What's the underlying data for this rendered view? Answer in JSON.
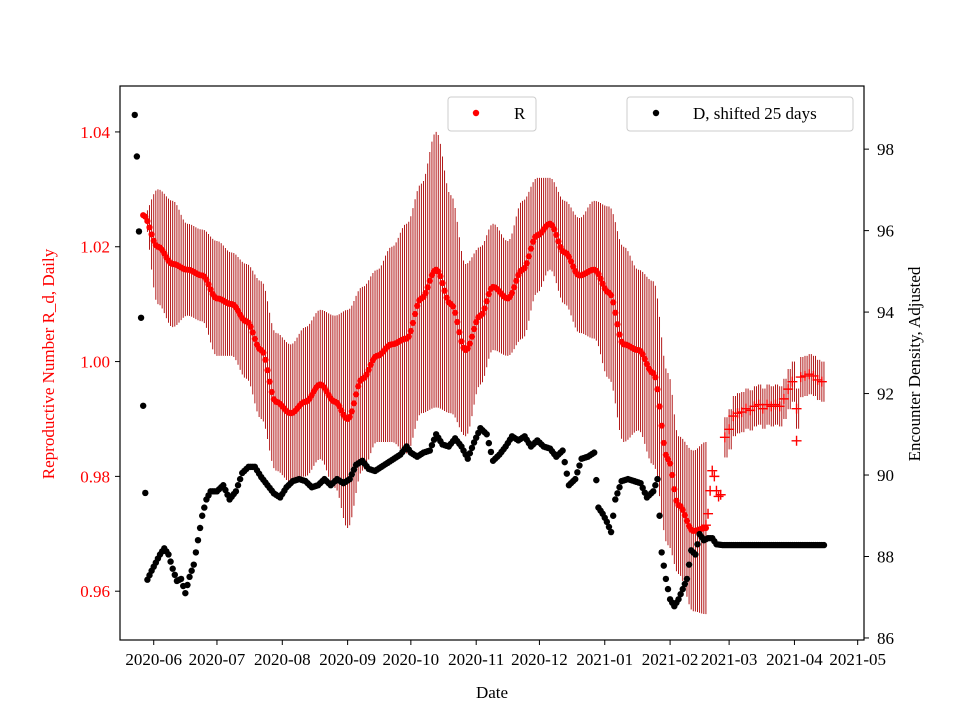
{
  "chart_data": {
    "type": "scatter",
    "xlabel": "Date",
    "left_axis": {
      "label": "Reproductive Number R_d, Daily",
      "color": "#ff0000",
      "ylim": [
        0.9515,
        1.048
      ],
      "ticks": [
        0.96,
        0.98,
        1.0,
        1.02,
        1.04
      ],
      "tick_labels": [
        "0.96",
        "0.98",
        "1.00",
        "1.02",
        "1.04"
      ]
    },
    "right_axis": {
      "label": "Encounter Density, Adjusted",
      "color": "#000000",
      "ylim": [
        85.95,
        99.55
      ],
      "ticks": [
        86,
        88,
        90,
        92,
        94,
        96,
        98
      ],
      "tick_labels": [
        "86",
        "88",
        "90",
        "92",
        "94",
        "96",
        "98"
      ]
    },
    "x_axis": {
      "start": "2020-05-16",
      "end": "2021-05-04",
      "ticks": [
        "2020-06-01",
        "2020-07-01",
        "2020-08-01",
        "2020-09-01",
        "2020-10-01",
        "2020-11-01",
        "2020-12-01",
        "2021-01-01",
        "2021-02-01",
        "2021-03-01",
        "2021-04-01",
        "2021-05-01"
      ],
      "tick_labels": [
        "2020-06",
        "2020-07",
        "2020-08",
        "2020-09",
        "2020-10",
        "2020-11",
        "2020-12",
        "2021-01",
        "2021-02",
        "2021-03",
        "2021-04",
        "2021-05"
      ]
    },
    "legends": [
      {
        "label": "R",
        "color": "#ff0000",
        "position": "upper-center"
      },
      {
        "label": "D, shifted 25 days",
        "color": "#000000",
        "position": "upper-right"
      }
    ],
    "series": [
      {
        "name": "R",
        "color": "#ff0000",
        "axis": "left",
        "marker": "dot",
        "date_start": "2020-05-27",
        "date_end": "2021-02-18",
        "error_color": "#aa0000",
        "knots": [
          [
            "2020-05-27",
            1.0255,
            0.0
          ],
          [
            "2020-06-03",
            1.02,
            0.01
          ],
          [
            "2020-06-10",
            1.017,
            0.011
          ],
          [
            "2020-06-17",
            1.016,
            0.008
          ],
          [
            "2020-06-24",
            1.015,
            0.008
          ],
          [
            "2020-07-01",
            1.011,
            0.01
          ],
          [
            "2020-07-08",
            1.01,
            0.009
          ],
          [
            "2020-07-15",
            1.007,
            0.01
          ],
          [
            "2020-07-22",
            1.002,
            0.012
          ],
          [
            "2020-07-29",
            0.993,
            0.012
          ],
          [
            "2020-08-05",
            0.991,
            0.012
          ],
          [
            "2020-08-12",
            0.993,
            0.013
          ],
          [
            "2020-08-19",
            0.996,
            0.013
          ],
          [
            "2020-08-26",
            0.993,
            0.015
          ],
          [
            "2020-09-01",
            0.99,
            0.019
          ],
          [
            "2020-09-08",
            0.997,
            0.016
          ],
          [
            "2020-09-15",
            1.001,
            0.015
          ],
          [
            "2020-09-22",
            1.003,
            0.017
          ],
          [
            "2020-09-29",
            1.004,
            0.02
          ],
          [
            "2020-10-06",
            1.011,
            0.02
          ],
          [
            "2020-10-13",
            1.016,
            0.024
          ],
          [
            "2020-10-20",
            1.01,
            0.019
          ],
          [
            "2020-10-27",
            1.002,
            0.015
          ],
          [
            "2020-11-03",
            1.008,
            0.012
          ],
          [
            "2020-11-09",
            1.013,
            0.011
          ],
          [
            "2020-11-16",
            1.011,
            0.01
          ],
          [
            "2020-11-23",
            1.016,
            0.012
          ],
          [
            "2020-11-30",
            1.022,
            0.01
          ],
          [
            "2020-12-06",
            1.024,
            0.008
          ],
          [
            "2020-12-13",
            1.019,
            0.009
          ],
          [
            "2020-12-20",
            1.015,
            0.01
          ],
          [
            "2020-12-27",
            1.016,
            0.012
          ],
          [
            "2021-01-03",
            1.012,
            0.015
          ],
          [
            "2021-01-10",
            1.003,
            0.017
          ],
          [
            "2021-01-17",
            1.002,
            0.014
          ],
          [
            "2021-01-24",
            0.998,
            0.016
          ],
          [
            "2021-01-31",
            0.983,
            0.015
          ],
          [
            "2021-02-05",
            0.975,
            0.012
          ],
          [
            "2021-02-12",
            0.9705,
            0.014
          ],
          [
            "2021-02-18",
            0.971,
            0.015
          ]
        ]
      },
      {
        "name": "R (plus markers)",
        "color": "#ff0000",
        "axis": "left",
        "marker": "plus",
        "points": [
          [
            "2021-02-18",
            0.9715
          ],
          [
            "2021-02-19",
            0.9735
          ],
          [
            "2021-02-20",
            0.9775
          ],
          [
            "2021-02-21",
            0.981
          ],
          [
            "2021-02-22",
            0.98
          ],
          [
            "2021-02-23",
            0.9775
          ],
          [
            "2021-02-24",
            0.9765
          ],
          [
            "2021-02-25",
            0.9768
          ],
          [
            "2021-02-27",
            0.9868
          ],
          [
            "2021-03-01",
            0.9882
          ],
          [
            "2021-03-03",
            0.9905
          ],
          [
            "2021-03-05",
            0.991
          ],
          [
            "2021-03-07",
            0.9912
          ],
          [
            "2021-03-09",
            0.9918
          ],
          [
            "2021-03-11",
            0.9915
          ],
          [
            "2021-03-13",
            0.9922
          ],
          [
            "2021-03-15",
            0.9925
          ],
          [
            "2021-03-17",
            0.9918
          ],
          [
            "2021-03-19",
            0.9925
          ],
          [
            "2021-03-21",
            0.9922
          ],
          [
            "2021-03-23",
            0.9925
          ],
          [
            "2021-03-25",
            0.9922
          ],
          [
            "2021-03-27",
            0.9935
          ],
          [
            "2021-03-29",
            0.9952
          ],
          [
            "2021-03-31",
            0.9965
          ],
          [
            "2021-04-02",
            0.9918
          ],
          [
            "2021-04-02",
            0.9862
          ],
          [
            "2021-04-04",
            0.9973
          ],
          [
            "2021-04-06",
            0.9975
          ],
          [
            "2021-04-08",
            0.9978
          ],
          [
            "2021-04-10",
            0.9975
          ],
          [
            "2021-04-12",
            0.9968
          ],
          [
            "2021-04-14",
            0.9965
          ]
        ],
        "error_band": {
          "date_start": "2021-02-27",
          "date_end": "2021-04-15",
          "half_width": 0.0035
        }
      },
      {
        "name": "D, shifted 25 days",
        "color": "#000000",
        "axis": "right",
        "marker": "dot",
        "points": [
          [
            "2020-05-23",
            98.84
          ],
          [
            "2020-05-24",
            97.82
          ],
          [
            "2020-05-25",
            95.98
          ],
          [
            "2020-05-26",
            93.86
          ],
          [
            "2020-05-27",
            91.7
          ],
          [
            "2020-05-28",
            89.56
          ],
          [
            "2020-05-29",
            87.43
          ],
          [
            "2020-05-31",
            87.65
          ],
          [
            "2020-06-02",
            87.85
          ],
          [
            "2020-06-04",
            88.05
          ],
          [
            "2020-06-06",
            88.2
          ],
          [
            "2020-06-08",
            88.05
          ],
          [
            "2020-06-10",
            87.7
          ],
          [
            "2020-06-12",
            87.4
          ],
          [
            "2020-06-14",
            87.45
          ],
          [
            "2020-06-16",
            87.1
          ],
          [
            "2020-06-18",
            87.5
          ],
          [
            "2020-06-20",
            87.8
          ],
          [
            "2020-06-22",
            88.4
          ],
          [
            "2020-06-24",
            89.0
          ],
          [
            "2020-06-26",
            89.4
          ],
          [
            "2020-06-28",
            89.6
          ],
          [
            "2020-07-01",
            89.6
          ],
          [
            "2020-07-04",
            89.75
          ],
          [
            "2020-07-07",
            89.4
          ],
          [
            "2020-07-10",
            89.6
          ],
          [
            "2020-07-13",
            90.05
          ],
          [
            "2020-07-16",
            90.2
          ],
          [
            "2020-07-19",
            90.2
          ],
          [
            "2020-07-22",
            89.95
          ],
          [
            "2020-07-25",
            89.75
          ],
          [
            "2020-07-28",
            89.55
          ],
          [
            "2020-07-31",
            89.45
          ],
          [
            "2020-08-03",
            89.7
          ],
          [
            "2020-08-06",
            89.85
          ],
          [
            "2020-08-09",
            89.9
          ],
          [
            "2020-08-12",
            89.85
          ],
          [
            "2020-08-15",
            89.7
          ],
          [
            "2020-08-18",
            89.75
          ],
          [
            "2020-08-21",
            89.9
          ],
          [
            "2020-08-24",
            89.75
          ],
          [
            "2020-08-27",
            89.9
          ],
          [
            "2020-08-30",
            89.8
          ],
          [
            "2020-09-02",
            89.9
          ],
          [
            "2020-09-05",
            90.25
          ],
          [
            "2020-09-08",
            90.35
          ],
          [
            "2020-09-11",
            90.15
          ],
          [
            "2020-09-14",
            90.1
          ],
          [
            "2020-09-17",
            90.2
          ],
          [
            "2020-09-20",
            90.3
          ],
          [
            "2020-09-23",
            90.4
          ],
          [
            "2020-09-26",
            90.5
          ],
          [
            "2020-09-29",
            90.7
          ],
          [
            "2020-10-01",
            90.55
          ],
          [
            "2020-10-04",
            90.45
          ],
          [
            "2020-10-07",
            90.55
          ],
          [
            "2020-10-10",
            90.6
          ],
          [
            "2020-10-13",
            91.0
          ],
          [
            "2020-10-16",
            90.75
          ],
          [
            "2020-10-19",
            90.7
          ],
          [
            "2020-10-22",
            90.9
          ],
          [
            "2020-10-25",
            90.7
          ],
          [
            "2020-10-28",
            90.4
          ],
          [
            "2020-10-31",
            90.8
          ],
          [
            "2020-11-03",
            91.15
          ],
          [
            "2020-11-06",
            91.0
          ],
          [
            "2020-11-09",
            90.35
          ],
          [
            "2020-11-12",
            90.5
          ],
          [
            "2020-11-15",
            90.7
          ],
          [
            "2020-11-18",
            90.95
          ],
          [
            "2020-11-21",
            90.85
          ],
          [
            "2020-11-24",
            90.95
          ],
          [
            "2020-11-27",
            90.7
          ],
          [
            "2020-11-30",
            90.85
          ],
          [
            "2020-12-03",
            90.7
          ],
          [
            "2020-12-06",
            90.65
          ],
          [
            "2020-12-09",
            90.45
          ],
          [
            "2020-12-12",
            90.6
          ],
          [
            "2020-12-15",
            89.75
          ],
          [
            "2020-12-18",
            89.9
          ],
          [
            "2020-12-21",
            90.4
          ],
          [
            "2020-12-24",
            90.45
          ],
          [
            "2020-12-27",
            90.55
          ],
          [
            "2020-12-29",
            89.2
          ],
          [
            "2020-12-31",
            89.05
          ],
          [
            "2021-01-02",
            88.85
          ],
          [
            "2021-01-04",
            88.6
          ],
          [
            "2021-01-06",
            89.4
          ],
          [
            "2021-01-09",
            89.85
          ],
          [
            "2021-01-12",
            89.9
          ],
          [
            "2021-01-15",
            89.85
          ],
          [
            "2021-01-18",
            89.8
          ],
          [
            "2021-01-21",
            89.45
          ],
          [
            "2021-01-24",
            89.6
          ],
          [
            "2021-01-26",
            89.9
          ],
          [
            "2021-01-28",
            88.1
          ],
          [
            "2021-01-30",
            87.45
          ],
          [
            "2021-02-01",
            86.95
          ],
          [
            "2021-02-03",
            86.78
          ],
          [
            "2021-02-05",
            86.95
          ],
          [
            "2021-02-07",
            87.2
          ],
          [
            "2021-02-09",
            87.45
          ],
          [
            "2021-02-11",
            88.15
          ],
          [
            "2021-02-13",
            88.05
          ],
          [
            "2021-02-15",
            88.55
          ],
          [
            "2021-02-17",
            88.4
          ],
          [
            "2021-02-19",
            88.45
          ],
          [
            "2021-02-21",
            88.45
          ],
          [
            "2021-02-23",
            88.3
          ],
          [
            "2021-02-26",
            88.28
          ],
          [
            "2021-03-01",
            88.28
          ],
          [
            "2021-03-04",
            88.28
          ],
          [
            "2021-03-07",
            88.28
          ],
          [
            "2021-03-10",
            88.28
          ],
          [
            "2021-03-13",
            88.28
          ],
          [
            "2021-03-16",
            88.28
          ],
          [
            "2021-03-19",
            88.28
          ],
          [
            "2021-03-22",
            88.28
          ],
          [
            "2021-03-25",
            88.28
          ],
          [
            "2021-03-28",
            88.28
          ],
          [
            "2021-03-31",
            88.28
          ],
          [
            "2021-04-03",
            88.28
          ],
          [
            "2021-04-06",
            88.28
          ],
          [
            "2021-04-09",
            88.28
          ],
          [
            "2021-04-12",
            88.28
          ],
          [
            "2021-04-15",
            88.28
          ]
        ]
      }
    ]
  }
}
